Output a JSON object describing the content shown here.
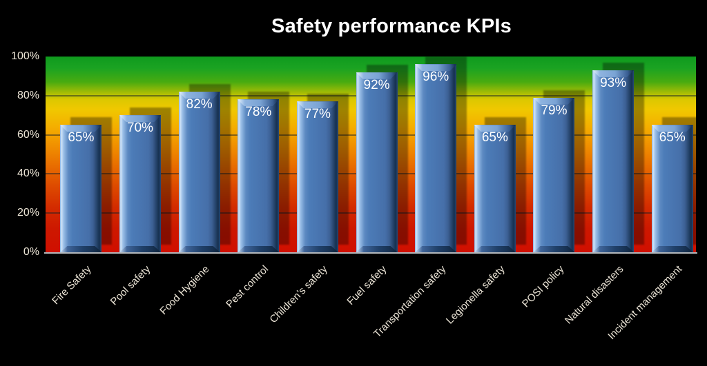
{
  "title": "Safety performance KPIs",
  "chart_data": {
    "type": "bar",
    "title": "Safety performance KPIs",
    "categories": [
      "Fire Safety",
      "Pool safety",
      "Food Hygiene",
      "Pest control",
      "Children’s safety",
      "Fuel safety",
      "Transportation safety",
      "Legionella safety",
      "POSI policy",
      "Natural disasters",
      "Incident management"
    ],
    "values": [
      65,
      70,
      82,
      78,
      77,
      92,
      96,
      65,
      79,
      93,
      65
    ],
    "data_labels": [
      "65%",
      "70%",
      "82%",
      "78%",
      "77%",
      "92%",
      "96%",
      "65%",
      "79%",
      "93%",
      "65%"
    ],
    "yticks": [
      {
        "label": "0%",
        "value": 0
      },
      {
        "label": "20%",
        "value": 20
      },
      {
        "label": "40%",
        "value": 40
      },
      {
        "label": "60%",
        "value": 60
      },
      {
        "label": "80%",
        "value": 80
      },
      {
        "label": "100%",
        "value": 100
      }
    ],
    "ylim": [
      0,
      100
    ],
    "xlabel": "",
    "ylabel": "",
    "grid": true,
    "legend": "none",
    "colors": {
      "background": "#000000",
      "title_text": "#ffffff",
      "bar_face": "#4a7ab6",
      "bar_highlight": "#d2e5f8",
      "bar_dark_edge": "#16304f",
      "data_label_text": "#ffffff",
      "axis_text": "#ede6d7",
      "plot_gradient_top": "#0f9a1e",
      "plot_gradient_middle": "#f0c800",
      "plot_gradient_bottom": "#d00f00",
      "gridline": "rgba(22,32,40,0.5)",
      "axis_line": "#b4b8bc",
      "bar_shadow": "rgba(0,0,0,0.34)"
    }
  }
}
